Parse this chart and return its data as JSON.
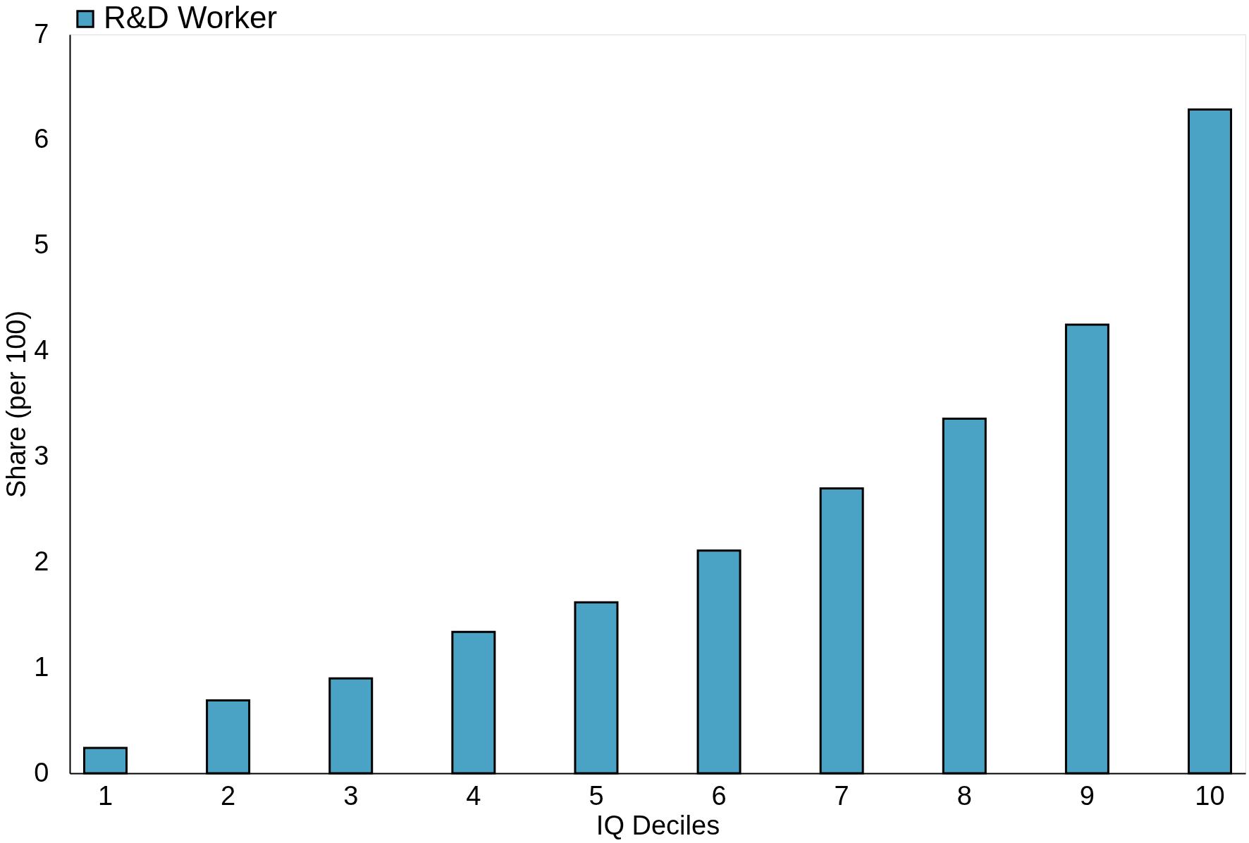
{
  "chart_data": {
    "type": "bar",
    "xlabel": "IQ Deciles",
    "ylabel": "Share (per 100)",
    "categories": [
      "1",
      "2",
      "3",
      "4",
      "5",
      "6",
      "7",
      "8",
      "9",
      "10"
    ],
    "series": [
      {
        "name": "R&D Worker",
        "color": "#4aa3c4",
        "values": [
          0.24,
          0.69,
          0.9,
          1.34,
          1.62,
          2.11,
          2.7,
          3.36,
          4.25,
          6.29
        ]
      }
    ],
    "ylim": [
      0,
      7
    ],
    "yticks": [
      0,
      1,
      2,
      3,
      4,
      5,
      6,
      7
    ],
    "grid": false,
    "legend": "top"
  }
}
